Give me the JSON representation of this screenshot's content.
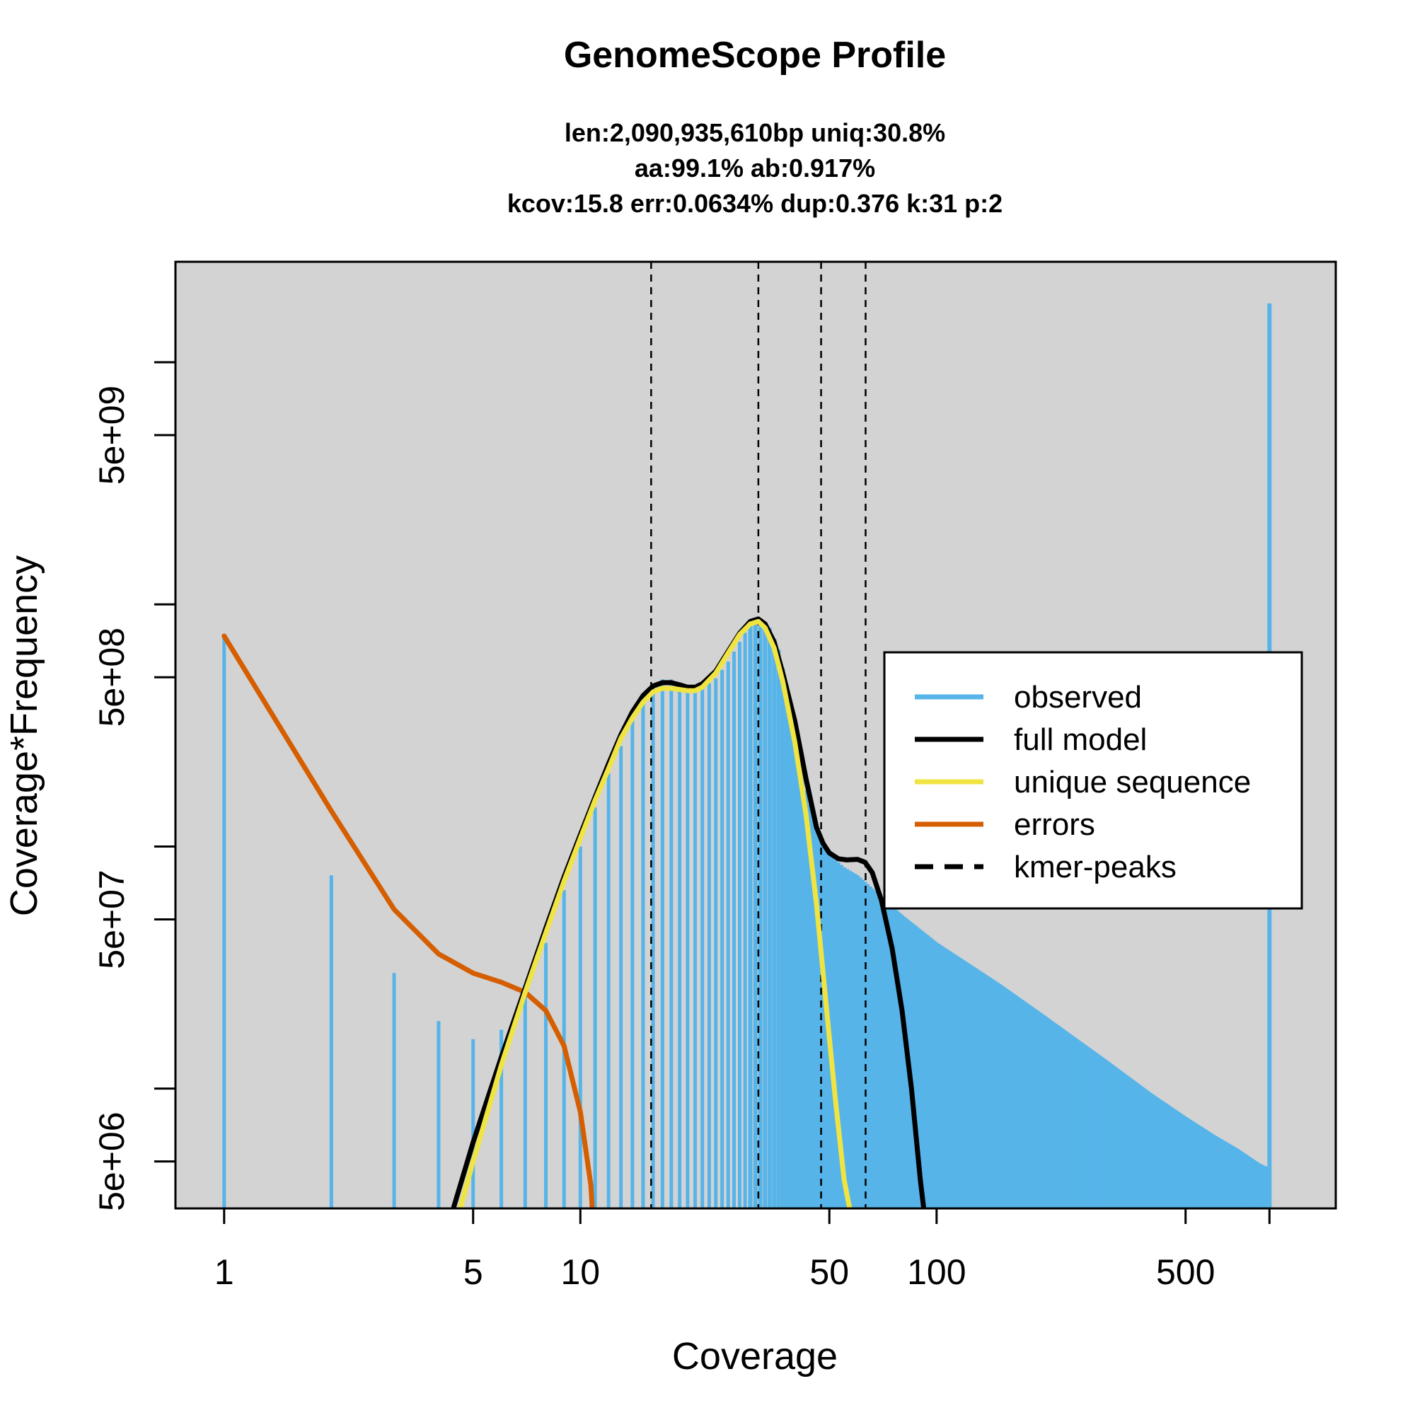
{
  "chart_data": {
    "type": "bar",
    "title": "GenomeScope Profile",
    "subtitle_lines": [
      "len:2,090,935,610bp uniq:30.8%",
      "aa:99.1% ab:0.917%",
      "kcov:15.8 err:0.0634%  dup:0.376  k:31 p:2"
    ],
    "xlabel": "Coverage",
    "ylabel": "Coverage*Frequency",
    "x_scale": "log",
    "y_scale": "log",
    "xlim": [
      0.73,
      1320
    ],
    "ylim": [
      3200000.0,
      26000000000.0
    ],
    "x_ticks": [
      1,
      5,
      10,
      50,
      100,
      500
    ],
    "x_tick_labels": [
      "1",
      "5",
      "10",
      "50",
      "100",
      "500"
    ],
    "y_ticks": [
      5000000.0,
      10000000.0,
      50000000.0,
      100000000.0,
      500000000.0,
      1000000000.0,
      5000000000.0,
      10000000000.0
    ],
    "y_tick_labels": [
      "5e+06",
      "",
      "5e+07",
      "",
      "5e+08",
      "",
      "5e+09",
      ""
    ],
    "background": "#d3d3d3",
    "legend_position": "right",
    "legend": [
      {
        "label": "observed",
        "color": "#56b4e9",
        "style": "solid"
      },
      {
        "label": "full model",
        "color": "#000000",
        "style": "solid"
      },
      {
        "label": "unique sequence",
        "color": "#f0e442",
        "style": "solid"
      },
      {
        "label": "errors",
        "color": "#d55e00",
        "style": "solid"
      },
      {
        "label": "kmer-peaks",
        "color": "#000000",
        "style": "dashed"
      }
    ],
    "kmer_peaks": [
      15.8,
      31.6,
      47.4,
      63.2
    ],
    "observed": {
      "color": "#56b4e9",
      "key_points": [
        [
          1,
          740000000.0
        ],
        [
          2,
          76000000.0
        ],
        [
          3,
          30000000.0
        ],
        [
          4,
          19000000.0
        ],
        [
          5,
          16000000.0
        ],
        [
          6,
          17500000.0
        ],
        [
          7,
          26000000.0
        ],
        [
          8,
          40000000.0
        ],
        [
          9,
          66000000.0
        ],
        [
          10,
          100000000.0
        ],
        [
          11,
          145000000.0
        ],
        [
          12,
          200000000.0
        ],
        [
          13,
          260000000.0
        ],
        [
          14,
          330000000.0
        ],
        [
          15,
          400000000.0
        ],
        [
          16,
          450000000.0
        ],
        [
          17,
          490000000.0
        ],
        [
          18,
          490000000.0
        ],
        [
          19,
          475000000.0
        ],
        [
          20,
          455000000.0
        ],
        [
          21,
          445000000.0
        ],
        [
          22,
          450000000.0
        ],
        [
          24,
          495000000.0
        ],
        [
          26,
          580000000.0
        ],
        [
          28,
          700000000.0
        ],
        [
          30,
          830000000.0
        ],
        [
          32,
          870000000.0
        ],
        [
          34,
          800000000.0
        ],
        [
          36,
          650000000.0
        ],
        [
          38,
          460000000.0
        ],
        [
          40,
          300000000.0
        ],
        [
          43,
          170000000.0
        ],
        [
          46,
          115000000.0
        ],
        [
          50,
          92000000.0
        ],
        [
          55,
          82000000.0
        ],
        [
          60,
          76000000.0
        ],
        [
          70,
          62000000.0
        ],
        [
          80,
          52000000.0
        ],
        [
          100,
          40000000.0
        ],
        [
          150,
          27000000.0
        ],
        [
          200,
          20000000.0
        ],
        [
          300,
          13000000.0
        ],
        [
          400,
          9500000.0
        ],
        [
          500,
          7600000.0
        ],
        [
          600,
          6400000.0
        ],
        [
          700,
          5600000.0
        ],
        [
          800,
          4900000.0
        ],
        [
          850,
          4700000.0
        ],
        [
          860,
          17500000000.0
        ]
      ]
    },
    "full_model": {
      "color": "#000000",
      "points": [
        [
          4.4,
          3200000.0
        ],
        [
          5,
          6000000.0
        ],
        [
          6,
          13500000.0
        ],
        [
          7,
          26000000.0
        ],
        [
          8,
          46000000.0
        ],
        [
          9,
          75000000.0
        ],
        [
          10,
          112000000.0
        ],
        [
          11,
          160000000.0
        ],
        [
          12,
          220000000.0
        ],
        [
          13,
          290000000.0
        ],
        [
          14,
          360000000.0
        ],
        [
          15,
          420000000.0
        ],
        [
          16,
          460000000.0
        ],
        [
          17,
          475000000.0
        ],
        [
          18,
          475000000.0
        ],
        [
          19,
          465000000.0
        ],
        [
          20,
          455000000.0
        ],
        [
          21,
          455000000.0
        ],
        [
          22,
          470000000.0
        ],
        [
          24,
          530000000.0
        ],
        [
          26,
          640000000.0
        ],
        [
          28,
          760000000.0
        ],
        [
          30,
          850000000.0
        ],
        [
          31.6,
          870000000.0
        ],
        [
          33,
          830000000.0
        ],
        [
          35,
          700000000.0
        ],
        [
          37,
          520000000.0
        ],
        [
          40,
          330000000.0
        ],
        [
          43,
          190000000.0
        ],
        [
          46,
          120000000.0
        ],
        [
          48,
          103000000.0
        ],
        [
          50,
          94000000.0
        ],
        [
          53,
          89000000.0
        ],
        [
          56,
          88000000.0
        ],
        [
          60,
          88500000.0
        ],
        [
          63,
          86000000.0
        ],
        [
          66,
          78000000.0
        ],
        [
          70,
          60000000.0
        ],
        [
          75,
          38000000.0
        ],
        [
          80,
          21000000.0
        ],
        [
          85,
          10000000.0
        ],
        [
          90,
          4200000.0
        ],
        [
          92,
          3200000.0
        ]
      ]
    },
    "unique_sequence": {
      "color": "#f0e442",
      "points": [
        [
          4.6,
          3200000.0
        ],
        [
          5,
          5000000.0
        ],
        [
          6,
          12500000.0
        ],
        [
          7,
          25000000.0
        ],
        [
          8,
          44000000.0
        ],
        [
          9,
          72000000.0
        ],
        [
          10,
          108000000.0
        ],
        [
          11,
          155000000.0
        ],
        [
          12,
          210000000.0
        ],
        [
          13,
          280000000.0
        ],
        [
          14,
          340000000.0
        ],
        [
          15,
          395000000.0
        ],
        [
          16,
          435000000.0
        ],
        [
          17,
          450000000.0
        ],
        [
          18,
          450000000.0
        ],
        [
          19,
          445000000.0
        ],
        [
          20,
          440000000.0
        ],
        [
          21,
          440000000.0
        ],
        [
          22,
          455000000.0
        ],
        [
          24,
          520000000.0
        ],
        [
          26,
          630000000.0
        ],
        [
          28,
          750000000.0
        ],
        [
          30,
          830000000.0
        ],
        [
          31.6,
          850000000.0
        ],
        [
          33,
          800000000.0
        ],
        [
          35,
          660000000.0
        ],
        [
          37,
          480000000.0
        ],
        [
          40,
          270000000.0
        ],
        [
          43,
          135000000.0
        ],
        [
          46,
          58000000.0
        ],
        [
          49,
          22000000.0
        ],
        [
          52,
          9000000.0
        ],
        [
          55,
          4200000.0
        ],
        [
          57,
          3200000.0
        ]
      ]
    },
    "errors": {
      "color": "#d55e00",
      "points": [
        [
          1,
          740000000.0
        ],
        [
          2,
          140000000.0
        ],
        [
          3,
          55000000.0
        ],
        [
          4,
          36000000.0
        ],
        [
          5,
          30000000.0
        ],
        [
          6,
          27500000.0
        ],
        [
          7,
          25000000.0
        ],
        [
          8,
          21000000.0
        ],
        [
          9,
          15000000.0
        ],
        [
          10,
          8000000.0
        ],
        [
          10.7,
          4000000.0
        ],
        [
          10.8,
          3200000.0
        ]
      ]
    }
  }
}
